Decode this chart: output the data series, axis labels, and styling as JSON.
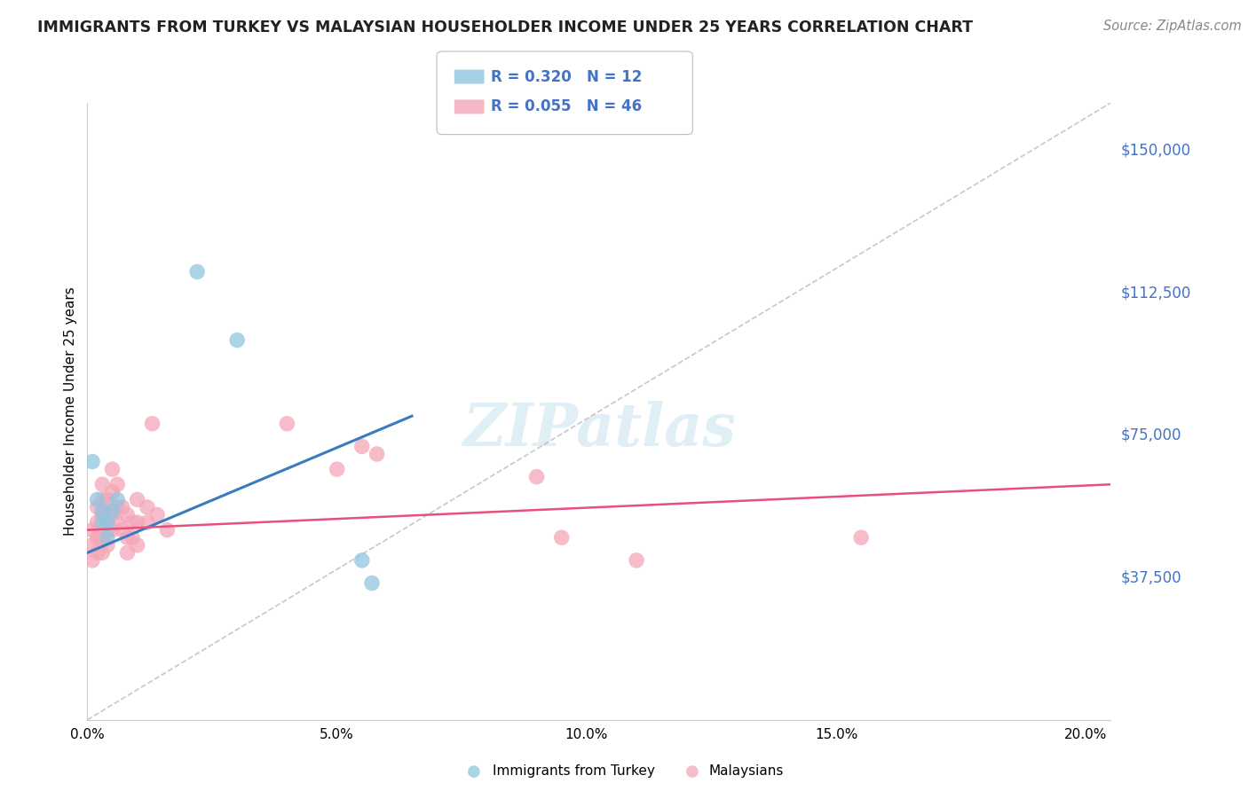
{
  "title": "IMMIGRANTS FROM TURKEY VS MALAYSIAN HOUSEHOLDER INCOME UNDER 25 YEARS CORRELATION CHART",
  "source": "Source: ZipAtlas.com",
  "ylabel": "Householder Income Under 25 years",
  "xlabel_ticks": [
    "0.0%",
    "5.0%",
    "10.0%",
    "15.0%",
    "20.0%"
  ],
  "xlabel_values": [
    0.0,
    0.05,
    0.1,
    0.15,
    0.2
  ],
  "ytick_labels": [
    "$37,500",
    "$75,000",
    "$112,500",
    "$150,000"
  ],
  "ytick_values": [
    37500,
    75000,
    112500,
    150000
  ],
  "ylim": [
    0,
    162500
  ],
  "xlim": [
    0.0,
    0.205
  ],
  "turkey_R": 0.32,
  "turkey_N": 12,
  "malaysian_R": 0.055,
  "malaysian_N": 46,
  "legend_label_turkey": "Immigrants from Turkey",
  "legend_label_malaysian": "Malaysians",
  "turkey_color": "#92c5de",
  "malaysian_color": "#f4a6b8",
  "turkey_line_color": "#3a7bbf",
  "malaysian_line_color": "#e8507a",
  "dashed_line_color": "#b0b0b0",
  "turkey_line_x": [
    0.0,
    0.065
  ],
  "turkey_line_y": [
    44000,
    80000
  ],
  "malaysian_line_x": [
    0.0,
    0.205
  ],
  "malaysian_line_y": [
    50000,
    62000
  ],
  "dash_line_x": [
    0.0,
    0.205
  ],
  "dash_line_y": [
    0,
    162500
  ],
  "turkey_scatter": [
    [
      0.001,
      68000
    ],
    [
      0.002,
      58000
    ],
    [
      0.003,
      55000
    ],
    [
      0.003,
      52000
    ],
    [
      0.004,
      48000
    ],
    [
      0.004,
      52000
    ],
    [
      0.005,
      55000
    ],
    [
      0.006,
      58000
    ],
    [
      0.022,
      118000
    ],
    [
      0.03,
      100000
    ],
    [
      0.055,
      42000
    ],
    [
      0.057,
      36000
    ]
  ],
  "malaysian_scatter": [
    [
      0.001,
      50000
    ],
    [
      0.001,
      46000
    ],
    [
      0.001,
      42000
    ],
    [
      0.002,
      56000
    ],
    [
      0.002,
      52000
    ],
    [
      0.002,
      48000
    ],
    [
      0.002,
      44000
    ],
    [
      0.003,
      62000
    ],
    [
      0.003,
      58000
    ],
    [
      0.003,
      54000
    ],
    [
      0.003,
      48000
    ],
    [
      0.003,
      44000
    ],
    [
      0.004,
      58000
    ],
    [
      0.004,
      54000
    ],
    [
      0.004,
      50000
    ],
    [
      0.004,
      46000
    ],
    [
      0.005,
      66000
    ],
    [
      0.005,
      60000
    ],
    [
      0.005,
      54000
    ],
    [
      0.005,
      50000
    ],
    [
      0.006,
      62000
    ],
    [
      0.006,
      56000
    ],
    [
      0.006,
      52000
    ],
    [
      0.007,
      56000
    ],
    [
      0.007,
      50000
    ],
    [
      0.008,
      54000
    ],
    [
      0.008,
      48000
    ],
    [
      0.008,
      44000
    ],
    [
      0.009,
      52000
    ],
    [
      0.009,
      48000
    ],
    [
      0.01,
      58000
    ],
    [
      0.01,
      52000
    ],
    [
      0.01,
      46000
    ],
    [
      0.012,
      56000
    ],
    [
      0.012,
      52000
    ],
    [
      0.014,
      54000
    ],
    [
      0.016,
      50000
    ],
    [
      0.04,
      78000
    ],
    [
      0.05,
      66000
    ],
    [
      0.055,
      72000
    ],
    [
      0.058,
      70000
    ],
    [
      0.09,
      64000
    ],
    [
      0.095,
      48000
    ],
    [
      0.11,
      42000
    ],
    [
      0.155,
      48000
    ],
    [
      0.013,
      78000
    ]
  ],
  "watermark": "ZIPatlas",
  "background_color": "#ffffff",
  "grid_color": "#d0d0d0",
  "title_color": "#222222",
  "source_color": "#888888",
  "ytick_color": "#4472c4"
}
